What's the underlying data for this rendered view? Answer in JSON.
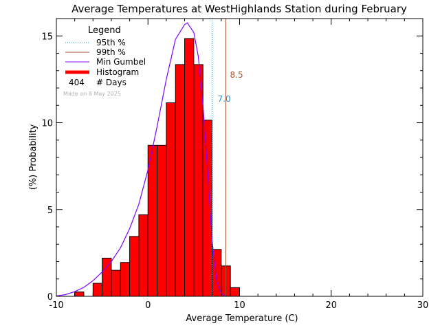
{
  "chart_data": {
    "type": "bar",
    "title": "Average Temperatures at WestHighlands Station during February",
    "xlabel": "Average Temperature (C)",
    "ylabel": "Probability",
    "ylabel_unit": "(%)",
    "xlim": [
      -10,
      30
    ],
    "ylim": [
      0,
      16
    ],
    "x_ticks": [
      -10,
      0,
      10,
      20,
      30
    ],
    "y_ticks": [
      0,
      5,
      10,
      15
    ],
    "bin_width": 1,
    "bins": [
      {
        "x0": -8,
        "x1": -7,
        "value": 0.25
      },
      {
        "x0": -6,
        "x1": -5,
        "value": 0.75
      },
      {
        "x0": -5,
        "x1": -4,
        "value": 2.2
      },
      {
        "x0": -4,
        "x1": -3,
        "value": 1.5
      },
      {
        "x0": -3,
        "x1": -2,
        "value": 1.95
      },
      {
        "x0": -2,
        "x1": -1,
        "value": 3.45
      },
      {
        "x0": -1,
        "x1": 0,
        "value": 4.7
      },
      {
        "x0": 0,
        "x1": 1,
        "value": 8.7
      },
      {
        "x0": 1,
        "x1": 2,
        "value": 8.7
      },
      {
        "x0": 2,
        "x1": 3,
        "value": 11.15
      },
      {
        "x0": 3,
        "x1": 4,
        "value": 13.35
      },
      {
        "x0": 4,
        "x1": 5,
        "value": 14.85
      },
      {
        "x0": 5,
        "x1": 6,
        "value": 13.35
      },
      {
        "x0": 6,
        "x1": 7,
        "value": 10.15
      },
      {
        "x0": 7,
        "x1": 8,
        "value": 2.7
      },
      {
        "x0": 8,
        "x1": 9,
        "value": 1.75
      },
      {
        "x0": 9,
        "x1": 10,
        "value": 0.5
      }
    ],
    "gumbel_curve": {
      "x": [
        -10,
        -9,
        -8,
        -7,
        -6,
        -5,
        -4,
        -3,
        -2,
        -1,
        0,
        1,
        2,
        3,
        4,
        4.3,
        5,
        5.5,
        6,
        6.5,
        7,
        7.5,
        8,
        8.5
      ],
      "y": [
        0.02,
        0.1,
        0.27,
        0.52,
        0.9,
        1.4,
        2.0,
        2.8,
        3.9,
        5.3,
        7.3,
        9.8,
        12.5,
        14.8,
        15.65,
        15.75,
        15.2,
        13.8,
        11.0,
        7.3,
        3.2,
        0.9,
        0.15,
        0.0
      ]
    },
    "percentile_95": 7.0,
    "percentile_99": 8.5,
    "percentile_95_label": "7.0",
    "percentile_99_label": "8.5",
    "grid": false,
    "legend_position": "top-left",
    "colors": {
      "histogram": "#ff0000",
      "p95": "#1f8fd6",
      "p99": "#a0522d",
      "gumbel": "#8000ff"
    }
  },
  "legend": {
    "title": "Legend",
    "items": [
      {
        "label": "95th %",
        "style": "dotted",
        "color": "#1f8fd6"
      },
      {
        "label": "99th %",
        "style": "solid",
        "color": "#a0522d"
      },
      {
        "label": "Min Gumbel",
        "style": "solid",
        "color": "#8000ff"
      },
      {
        "label": "Histogram",
        "style": "thick",
        "color": "#ff0000"
      }
    ],
    "days_count": "404",
    "days_label": "# Days",
    "made_on": "Made on 8 May 2025"
  }
}
